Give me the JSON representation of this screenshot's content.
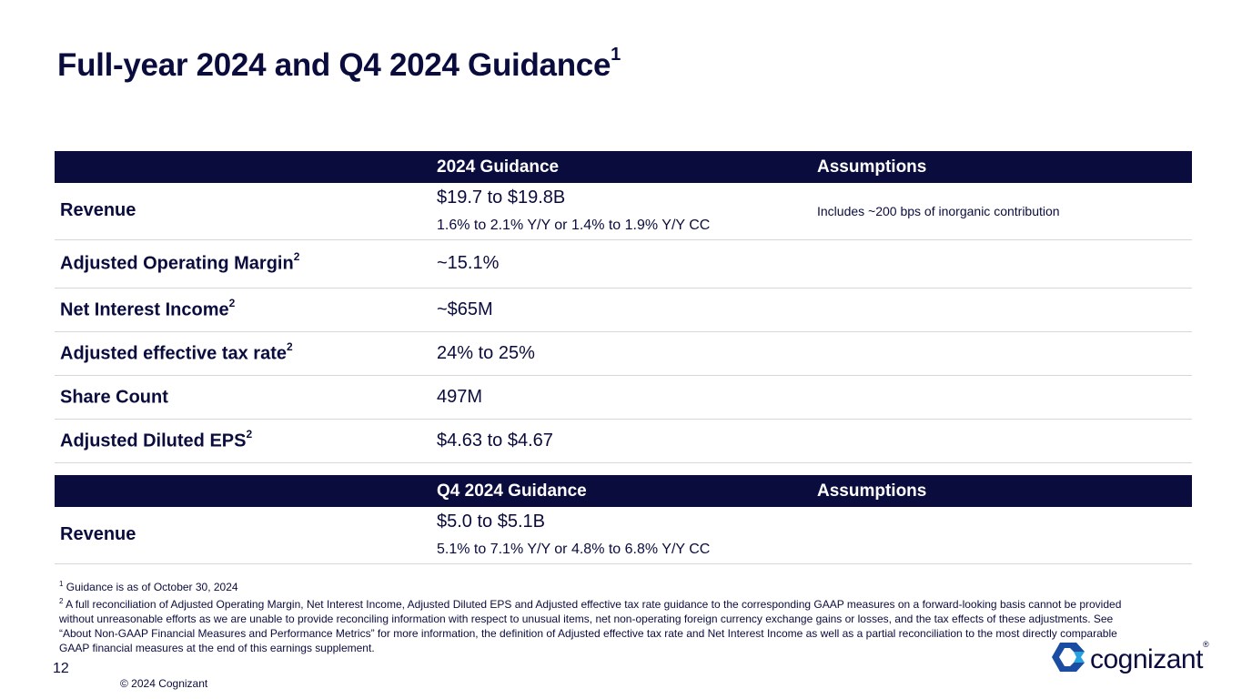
{
  "page": {
    "title": "Full-year 2024 and Q4 2024 Guidance",
    "title_note": "1"
  },
  "colors": {
    "navy": "#0b0c3e",
    "logo_blue": "#1a4ca1",
    "logo_light": "#26a2e0"
  },
  "fy_table": {
    "headers": [
      "",
      "2024 Guidance",
      "Assumptions"
    ],
    "revenue": {
      "label": "Revenue",
      "value": "$19.7 to $19.8B",
      "growth": "1.6% to 2.1% Y/Y or  1.4% to 1.9% Y/Y CC",
      "assumption": "Includes  ~200 bps of inorganic contribution"
    },
    "rows": [
      {
        "label": "Adjusted Operating Margin",
        "note": "2",
        "value": "~15.1%"
      },
      {
        "label": "Net Interest Income",
        "note": "2",
        "value": "~$65M"
      },
      {
        "label": "Adjusted effective tax rate",
        "note": "2",
        "value": "24% to 25%"
      },
      {
        "label": "Share Count",
        "note": "",
        "value": "497M"
      },
      {
        "label": "Adjusted Diluted EPS",
        "note": "2",
        "value": "$4.63 to $4.67"
      }
    ]
  },
  "q4_table": {
    "headers": [
      "",
      "Q4 2024 Guidance",
      "Assumptions"
    ],
    "revenue": {
      "label": "Revenue",
      "value": "$5.0 to $5.1B",
      "growth": "5.1% to 7.1% Y/Y or 4.8% to 6.8% Y/Y CC"
    }
  },
  "footnotes": {
    "n1_marker": "1",
    "n1": "Guidance is as of October 30, 2024",
    "n2_marker": "2",
    "n2": "A full reconciliation of Adjusted Operating Margin, Net Interest Income, Adjusted Diluted EPS and Adjusted effective tax rate guidance to the corresponding GAAP measures on a forward-looking basis cannot be provided without unreasonable  efforts as we are unable to provide reconciling information with respect to unusual items, net non-operating foreign currency exchange gains or losses, and the tax effects of these adjustments. See “About Non-GAAP Financial Measures and Performance Metrics” for more information, the definition of Adjusted effective tax rate and Net Interest Income as well as a partial reconciliation to the most directly comparable GAAP financial measures at the end of this earnings supplement."
  },
  "footer": {
    "copyright": "© 2024 Cognizant",
    "page_number": "12",
    "logo_text": "cognizant",
    "logo_mark": "®",
    "logo_icon": "cognizant-logo-icon"
  }
}
